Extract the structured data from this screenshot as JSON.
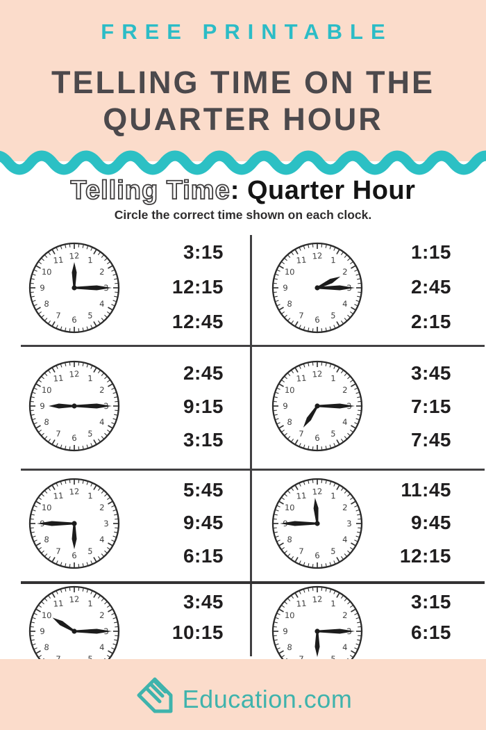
{
  "banner": {
    "kicker": "FREE PRINTABLE",
    "title": "TELLING TIME ON THE QUARTER HOUR"
  },
  "worksheet": {
    "title_outline": "Telling Time",
    "title_bold": ": Quarter Hour",
    "subtitle": "Circle the correct time shown on each clock.",
    "clock_numerals": [
      "12",
      "1",
      "2",
      "3",
      "4",
      "5",
      "6",
      "7",
      "8",
      "9",
      "10",
      "11"
    ],
    "problems": [
      {
        "clock": {
          "shows": "12:15",
          "hour_angle": 0,
          "minute_angle": 90
        },
        "options": [
          "3:15",
          "12:15",
          "12:45"
        ]
      },
      {
        "clock": {
          "shows": "2:15",
          "hour_angle": 64,
          "minute_angle": 90
        },
        "options": [
          "1:15",
          "2:45",
          "2:15"
        ]
      },
      {
        "clock": {
          "shows": "9:15",
          "hour_angle": 270,
          "minute_angle": 90
        },
        "options": [
          "2:45",
          "9:15",
          "3:15"
        ]
      },
      {
        "clock": {
          "shows": "7:15",
          "hour_angle": 213,
          "minute_angle": 90
        },
        "options": [
          "3:45",
          "7:15",
          "7:45"
        ]
      },
      {
        "clock": {
          "shows": "5:45",
          "hour_angle": 180,
          "minute_angle": 270
        },
        "options": [
          "5:45",
          "9:45",
          "6:15"
        ]
      },
      {
        "clock": {
          "shows": "11:45",
          "hour_angle": 355,
          "minute_angle": 270
        },
        "options": [
          "11:45",
          "9:45",
          "12:15"
        ]
      },
      {
        "clock": {
          "shows": "10:15",
          "hour_angle": 302,
          "minute_angle": 90
        },
        "options": [
          "3:45",
          "10:15"
        ]
      },
      {
        "clock": {
          "shows": "6:15",
          "hour_angle": 180,
          "minute_angle": 90
        },
        "options": [
          "3:15",
          "6:15"
        ]
      }
    ]
  },
  "footer": {
    "brand": "Education.com"
  },
  "colors": {
    "banner_pink": "#fbdccb",
    "wave_teal": "#2cc0c4",
    "kicker_teal": "#2cbcc6",
    "banner_title_gray": "#4c494c",
    "ink": "#201e1f",
    "logo_teal": "#3fb3ac"
  }
}
